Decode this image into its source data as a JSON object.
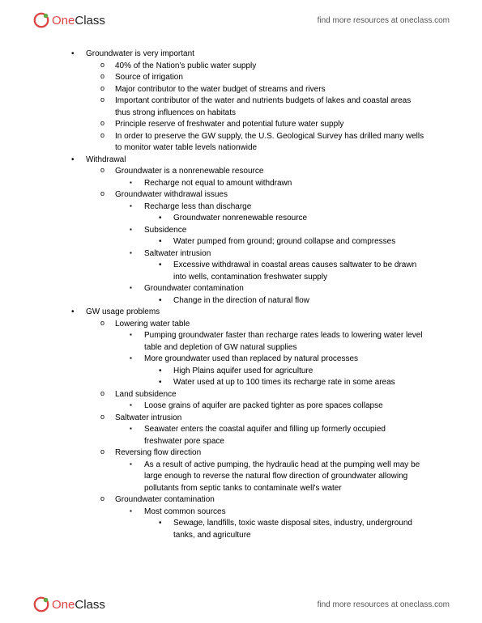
{
  "brand": {
    "one": "One",
    "class": "Class"
  },
  "header_link": "find more resources at oneclass.com",
  "footer_link": "find more resources at oneclass.com",
  "items": [
    {
      "lv": 0,
      "b": "disc",
      "t": "Groundwater is very important"
    },
    {
      "lv": 1,
      "b": "circ",
      "t": "40% of the Nation's public water supply"
    },
    {
      "lv": 1,
      "b": "circ",
      "t": "Source of irrigation"
    },
    {
      "lv": 1,
      "b": "circ",
      "t": "Major contributor to the water budget of streams and rivers"
    },
    {
      "lv": 1,
      "b": "circ",
      "t": "Important contributor of the water and nutrients budgets of lakes and coastal areas thus strong influences on habitats"
    },
    {
      "lv": 1,
      "b": "circ",
      "t": "Principle reserve of freshwater and potential future water supply"
    },
    {
      "lv": 1,
      "b": "circ",
      "t": "In order to preserve the GW supply, the U.S. Geological Survey has drilled many wells to monitor water table levels nationwide"
    },
    {
      "lv": 0,
      "b": "disc",
      "t": "Withdrawal"
    },
    {
      "lv": 1,
      "b": "circ",
      "t": "Groundwater is a nonrenewable resource"
    },
    {
      "lv": 2,
      "b": "sq",
      "t": "Recharge not equal to amount withdrawn"
    },
    {
      "lv": 1,
      "b": "circ",
      "t": "Groundwater withdrawal issues"
    },
    {
      "lv": 2,
      "b": "sq",
      "t": "Recharge less than discharge"
    },
    {
      "lv": 3,
      "b": "dc",
      "t": "Groundwater nonrenewable resource"
    },
    {
      "lv": 2,
      "b": "sq",
      "t": "Subsidence"
    },
    {
      "lv": 3,
      "b": "dc",
      "t": "Water pumped from ground; ground collapse and compresses"
    },
    {
      "lv": 2,
      "b": "sq",
      "t": "Saltwater intrusion"
    },
    {
      "lv": 3,
      "b": "dc",
      "t": "Excessive withdrawal in coastal areas causes saltwater to be drawn into wells, contamination freshwater supply"
    },
    {
      "lv": 2,
      "b": "sq",
      "t": "Groundwater contamination"
    },
    {
      "lv": 3,
      "b": "dc",
      "t": "Change in the direction of natural flow"
    },
    {
      "lv": 0,
      "b": "disc",
      "t": "GW usage problems"
    },
    {
      "lv": 1,
      "b": "circ",
      "t": "Lowering water table"
    },
    {
      "lv": 2,
      "b": "sq",
      "t": "Pumping groundwater faster than recharge rates leads to lowering water level table and depletion of GW natural supplies"
    },
    {
      "lv": 2,
      "b": "sq",
      "t": "More groundwater used than replaced by natural processes"
    },
    {
      "lv": 3,
      "b": "dc",
      "t": "High Plains aquifer used for agriculture"
    },
    {
      "lv": 3,
      "b": "dc",
      "t": "Water used at up to 100 times its recharge rate in some areas"
    },
    {
      "lv": 1,
      "b": "circ",
      "t": "Land subsidence"
    },
    {
      "lv": 2,
      "b": "sq",
      "t": "Loose grains of aquifer are packed tighter as pore spaces collapse"
    },
    {
      "lv": 1,
      "b": "circ",
      "t": "Saltwater intrusion"
    },
    {
      "lv": 2,
      "b": "sq",
      "t": "Seawater enters the coastal aquifer and filling up formerly occupied freshwater pore space"
    },
    {
      "lv": 1,
      "b": "circ",
      "t": "Reversing flow direction"
    },
    {
      "lv": 2,
      "b": "sq",
      "t": "As a result of active pumping, the hydraulic head at the pumping well may be large enough to reverse the natural flow direction of groundwater allowing pollutants from septic tanks to contaminate well's water"
    },
    {
      "lv": 1,
      "b": "circ",
      "t": "Groundwater contamination"
    },
    {
      "lv": 2,
      "b": "sq",
      "t": "Most common sources"
    },
    {
      "lv": 3,
      "b": "dc",
      "t": "Sewage, landfills, toxic waste disposal sites, industry, underground tanks, and agriculture"
    }
  ]
}
